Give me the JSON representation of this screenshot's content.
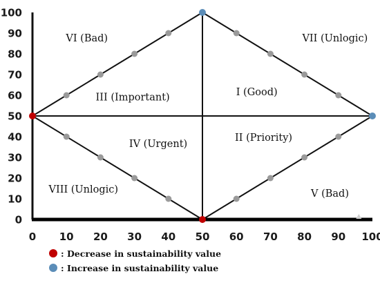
{
  "chart_data": {
    "type": "scatter",
    "xlim": [
      0,
      100
    ],
    "ylim": [
      0,
      100
    ],
    "x_ticks": [
      0,
      10,
      20,
      30,
      40,
      50,
      60,
      70,
      80,
      90,
      100
    ],
    "y_ticks": [
      0,
      10,
      20,
      30,
      40,
      50,
      60,
      70,
      80,
      90,
      100
    ],
    "grid": false,
    "lines": [
      {
        "id": "diamond-upper-left",
        "points": [
          [
            0,
            50
          ],
          [
            50,
            100
          ]
        ]
      },
      {
        "id": "diamond-upper-right",
        "points": [
          [
            50,
            100
          ],
          [
            100,
            50
          ]
        ]
      },
      {
        "id": "diamond-lower-right",
        "points": [
          [
            100,
            50
          ],
          [
            50,
            0
          ]
        ]
      },
      {
        "id": "diamond-lower-left",
        "points": [
          [
            50,
            0
          ],
          [
            0,
            50
          ]
        ]
      },
      {
        "id": "vertical-divider",
        "points": [
          [
            50,
            0
          ],
          [
            50,
            100
          ]
        ]
      },
      {
        "id": "horizontal-divider",
        "points": [
          [
            0,
            50
          ],
          [
            100,
            50
          ]
        ]
      }
    ],
    "series": [
      {
        "name": "Decrease in sustainability value",
        "color": "#c00000",
        "points": [
          [
            0,
            50
          ],
          [
            50,
            0
          ]
        ]
      },
      {
        "name": "Increase in sustainability value",
        "color": "#5b8db8",
        "points": [
          [
            50,
            100
          ],
          [
            100,
            50
          ]
        ]
      },
      {
        "color": "#9a9a9a",
        "points": [
          [
            10,
            60
          ],
          [
            20,
            70
          ],
          [
            30,
            80
          ],
          [
            40,
            90
          ],
          [
            60,
            90
          ],
          [
            70,
            80
          ],
          [
            80,
            70
          ],
          [
            90,
            60
          ],
          [
            10,
            40
          ],
          [
            20,
            30
          ],
          [
            30,
            20
          ],
          [
            40,
            10
          ],
          [
            60,
            10
          ],
          [
            70,
            20
          ],
          [
            80,
            30
          ],
          [
            90,
            40
          ]
        ]
      }
    ],
    "annotations": [
      {
        "text": "VI (Bad)",
        "x": 16,
        "y": 86
      },
      {
        "text": "VII (Unlogic)",
        "x": 89,
        "y": 86
      },
      {
        "text": "III (Important)",
        "x": 29.5,
        "y": 57.5
      },
      {
        "text": "I (Good)",
        "x": 66,
        "y": 60
      },
      {
        "text": "IV (Urgent)",
        "x": 37,
        "y": 35
      },
      {
        "text": "II (Priority)",
        "x": 68,
        "y": 38
      },
      {
        "text": "VIII (Unlogic)",
        "x": 15,
        "y": 13
      },
      {
        "text": "V (Bad)",
        "x": 87.5,
        "y": 11
      }
    ],
    "legend": {
      "position": "bottom-left",
      "items": [
        {
          "label": ": Decrease in sustainability value",
          "color": "#c00000"
        },
        {
          "label": ": Increase in sustainability value",
          "color": "#5b8db8"
        }
      ]
    }
  }
}
